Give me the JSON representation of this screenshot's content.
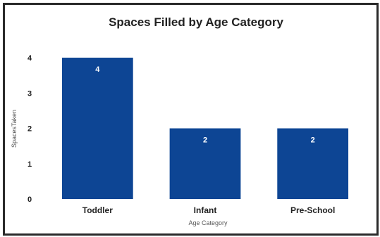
{
  "chart_data": {
    "type": "bar",
    "title": "Spaces Filled by Age Category",
    "xlabel": "Age Category",
    "ylabel": "SpacesTaken",
    "categories": [
      "Toddler",
      "Infant",
      "Pre-School"
    ],
    "values": [
      4,
      2,
      2
    ],
    "data_labels": [
      "4",
      "2",
      "2"
    ],
    "y_ticks": [
      "0",
      "1",
      "2",
      "3",
      "4"
    ],
    "ylim": [
      0,
      4
    ],
    "grid": false,
    "legend": "none",
    "bar_color": "#0d4594"
  }
}
